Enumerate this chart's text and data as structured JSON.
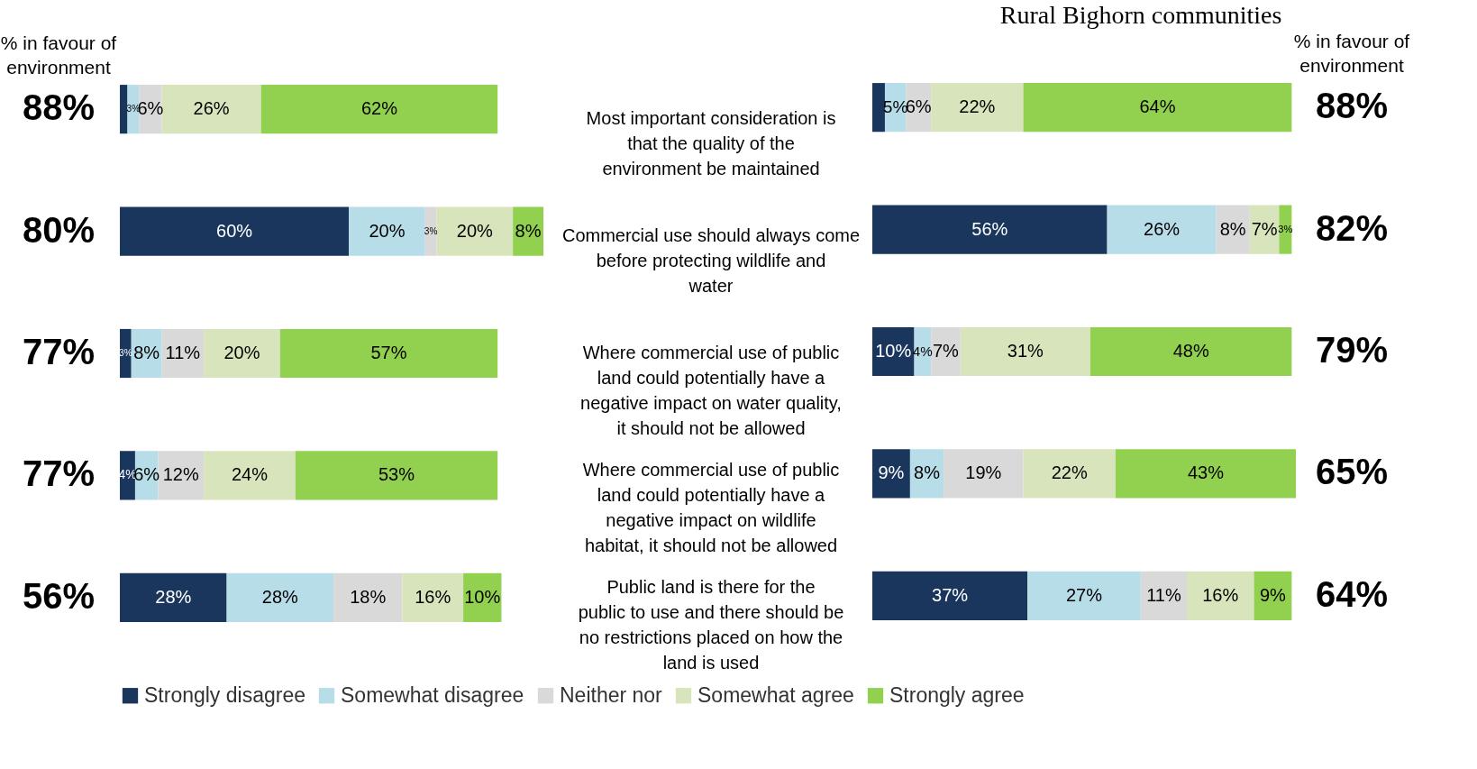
{
  "chart_data": [
    {
      "type": "bar",
      "orientation": "horizontal",
      "stacked": true,
      "legend": "bottom",
      "categories": [
        "Most important consideration is that the quality of the environment be maintained",
        "Commercial use should always come before protecting wildlife and water",
        "Where commercial use of public land could potentially have a negative impact on water quality, it should not be allowed",
        "Where commercial use of public land could potentially have a negative impact on wildlife habitat, it should not be allowed",
        "Public land is there for the public to use and there should be no restrictions placed on how the land is used"
      ],
      "series": [
        {
          "name": "Strongly disagree",
          "color": "#1b365d",
          "values": [
            2,
            60,
            3,
            4,
            28
          ],
          "value_labels": [
            null,
            "60%",
            "3%",
            "4%",
            "28%"
          ]
        },
        {
          "name": "Somewhat disagree",
          "color": "#b7dde8",
          "values": [
            3,
            20,
            8,
            6,
            28
          ],
          "value_labels": [
            "3%",
            "20%",
            "8%",
            "6%",
            "28%"
          ]
        },
        {
          "name": "Neither nor",
          "color": "#d9d9d9",
          "values": [
            6,
            3,
            11,
            12,
            18
          ],
          "value_labels": [
            "6%",
            "3%",
            "11%",
            "12%",
            "18%"
          ]
        },
        {
          "name": "Somewhat agree",
          "color": "#d8e4bc",
          "values": [
            26,
            20,
            20,
            24,
            16
          ],
          "value_labels": [
            "26%",
            "20%",
            "20%",
            "24%",
            "16%"
          ]
        },
        {
          "name": "Strongly agree",
          "color": "#92d050",
          "values": [
            62,
            8,
            57,
            53,
            10
          ],
          "value_labels": [
            "62%",
            "8%",
            "57%",
            "53%",
            "10%"
          ]
        }
      ],
      "annotations": [
        "% in favour of environment",
        "88%",
        "80%",
        "77%",
        "77%",
        "56%"
      ]
    },
    {
      "type": "bar",
      "orientation": "horizontal",
      "stacked": true,
      "title": "Rural  Bighorn communities",
      "categories": [
        null,
        null,
        null,
        null,
        null
      ],
      "series": [
        {
          "color": "#1b365d",
          "values": [
            3,
            56,
            10,
            9,
            37
          ],
          "value_labels": [
            null,
            "56%",
            "10%",
            "9%",
            "37%"
          ]
        },
        {
          "color": "#b7dde8",
          "values": [
            5,
            26,
            4,
            8,
            27
          ],
          "value_labels": [
            "5%",
            "26%",
            "4%",
            "8%",
            "27%"
          ]
        },
        {
          "color": "#d9d9d9",
          "values": [
            6,
            8,
            7,
            19,
            11
          ],
          "value_labels": [
            "6%",
            "8%",
            "7%",
            "19%",
            "11%"
          ]
        },
        {
          "color": "#d8e4bc",
          "values": [
            22,
            7,
            31,
            22,
            16
          ],
          "value_labels": [
            "22%",
            "7%",
            "31%",
            "22%",
            "16%"
          ]
        },
        {
          "color": "#92d050",
          "values": [
            64,
            3,
            48,
            43,
            9
          ],
          "value_labels": [
            "64%",
            "3%",
            "48%",
            "43%",
            "9%"
          ]
        }
      ],
      "annotations": [
        "% in favour of environment",
        "88%",
        "82%",
        "79%",
        "65%",
        "64%"
      ]
    }
  ]
}
